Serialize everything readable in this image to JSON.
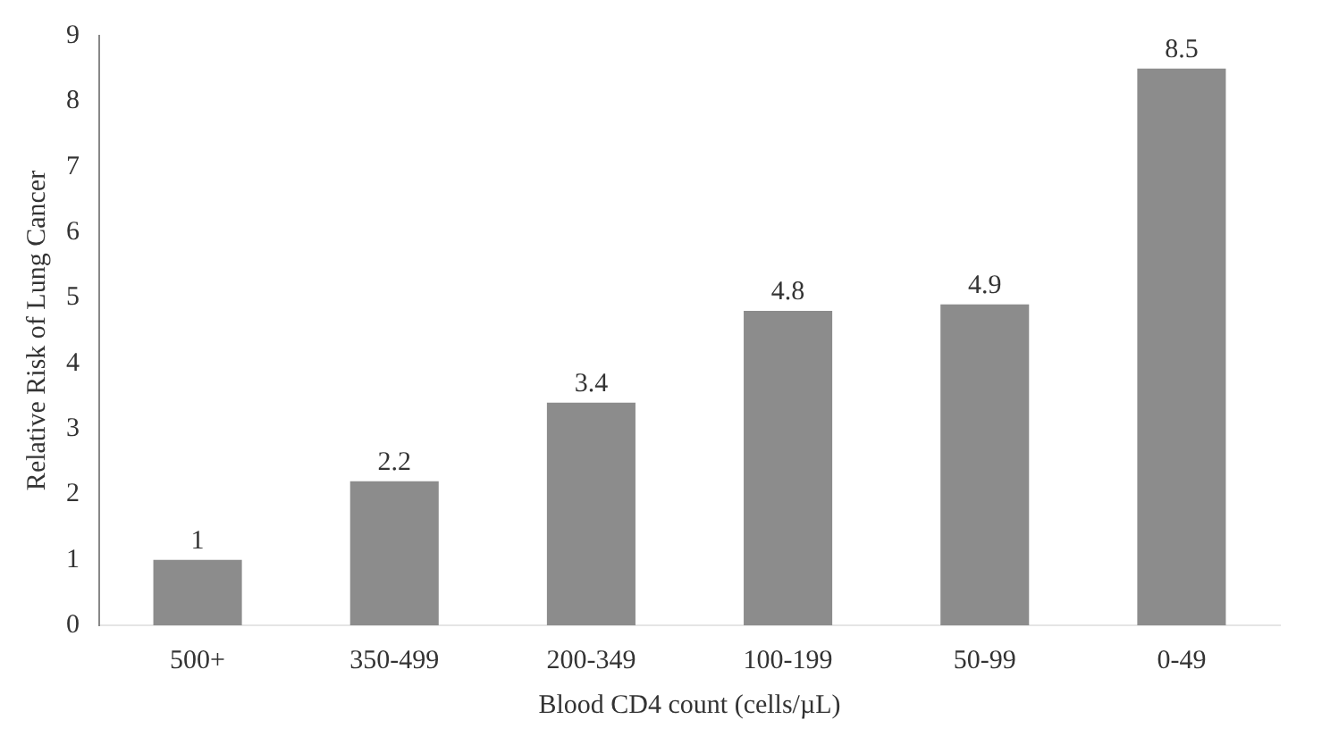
{
  "chart_data": {
    "type": "bar",
    "xlabel": "Blood CD4 count (cells/µL)",
    "ylabel": "Relative Risk of Lung Cancer",
    "categories": [
      "500+",
      "350-499",
      "200-349",
      "100-199",
      "50-99",
      "0-49"
    ],
    "values": [
      1,
      2.2,
      3.4,
      4.8,
      4.9,
      8.5
    ],
    "color": "#8c8c8c",
    "ylim": [
      0,
      9
    ],
    "yticks": [
      0,
      1,
      2,
      3,
      4,
      5,
      6,
      7,
      8,
      9
    ],
    "grid": false,
    "data_labels": true
  }
}
